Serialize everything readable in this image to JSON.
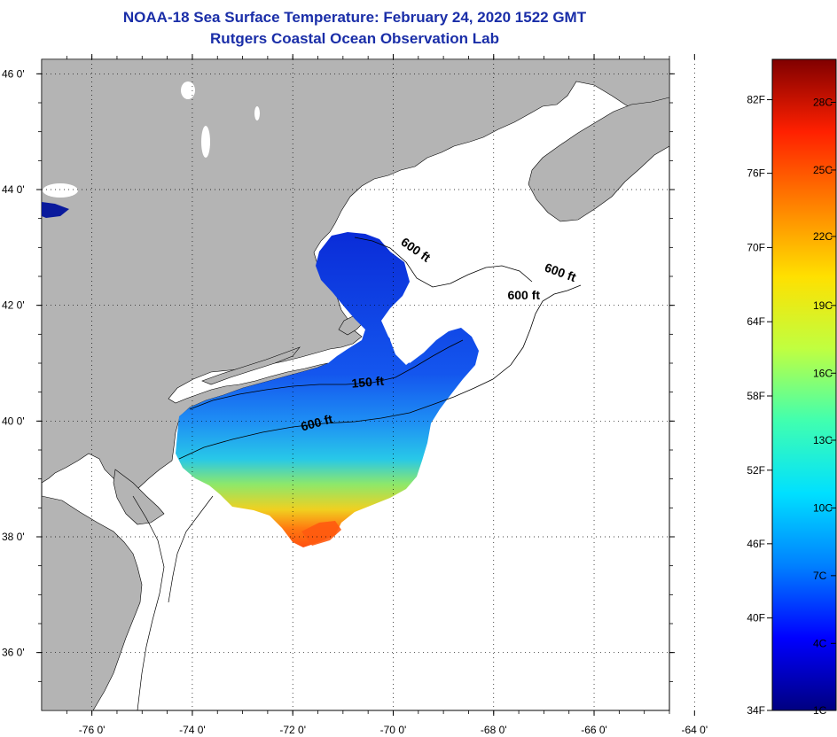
{
  "title": {
    "line1": "NOAA-18 Sea Surface Temperature:  February 24, 2020 1522 GMT",
    "line2": "Rutgers Coastal Ocean Observation Lab"
  },
  "map": {
    "lat_range": [
      35,
      46.25
    ],
    "lon_range": [
      -77,
      -64.5
    ],
    "lat_ticks": [
      {
        "lat": 46,
        "label": "46 0'"
      },
      {
        "lat": 44,
        "label": "44 0'"
      },
      {
        "lat": 42,
        "label": "42 0'"
      },
      {
        "lat": 40,
        "label": "40 0'"
      },
      {
        "lat": 38,
        "label": "38 0'"
      },
      {
        "lat": 36,
        "label": "36 0'"
      }
    ],
    "lon_ticks": [
      {
        "lon": -76,
        "label": "-76 0'"
      },
      {
        "lon": -74,
        "label": "-74 0'"
      },
      {
        "lon": -72,
        "label": "-72 0'"
      },
      {
        "lon": -70,
        "label": "-70 0'"
      },
      {
        "lon": -68,
        "label": "-68 0'"
      },
      {
        "lon": -66,
        "label": "-66 0'"
      },
      {
        "lon": -64,
        "label": "-64 0'"
      }
    ],
    "contour_labels": [
      {
        "text": "600 ft",
        "lon": -69.6,
        "lat": 42.9,
        "rot": 35
      },
      {
        "text": "600 ft",
        "lon": -66.7,
        "lat": 42.5,
        "rot": 20
      },
      {
        "text": "600 ft",
        "lon": -67.4,
        "lat": 42.1,
        "rot": 0
      },
      {
        "text": "150 ft",
        "lon": -70.5,
        "lat": 40.6,
        "rot": -5
      },
      {
        "text": "600 ft",
        "lon": -71.5,
        "lat": 39.9,
        "rot": -15
      }
    ],
    "land_color": "#b4b4b4",
    "ocean_color": "#ffffff"
  },
  "colorbar": {
    "colors": [
      "#000080",
      "#0000ff",
      "#0080ff",
      "#00e0ff",
      "#40ffb0",
      "#c0ff40",
      "#ffe000",
      "#ff8000",
      "#ff2000",
      "#800000"
    ],
    "f_labels": [
      {
        "label": "82F",
        "t": 0.938
      },
      {
        "label": "76F",
        "t": 0.825
      },
      {
        "label": "70F",
        "t": 0.711
      },
      {
        "label": "64F",
        "t": 0.597
      },
      {
        "label": "58F",
        "t": 0.483
      },
      {
        "label": "52F",
        "t": 0.369
      },
      {
        "label": "46F",
        "t": 0.256
      },
      {
        "label": "40F",
        "t": 0.142
      },
      {
        "label": "34F",
        "t": 0.0
      }
    ],
    "c_labels": [
      {
        "label": "28C",
        "t": 0.934
      },
      {
        "label": "25C",
        "t": 0.83
      },
      {
        "label": "22C",
        "t": 0.728
      },
      {
        "label": "19C",
        "t": 0.622
      },
      {
        "label": "16C",
        "t": 0.518
      },
      {
        "label": "13C",
        "t": 0.415
      },
      {
        "label": "10C",
        "t": 0.311
      },
      {
        "label": "7C",
        "t": 0.207
      },
      {
        "label": "4C",
        "t": 0.103
      },
      {
        "label": "1C",
        "t": 0.0
      }
    ]
  }
}
